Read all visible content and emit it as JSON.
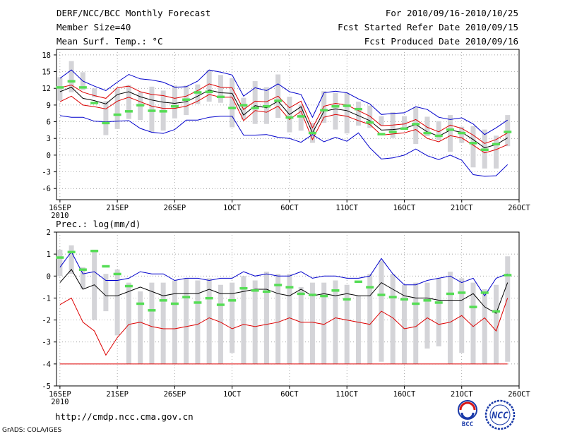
{
  "header": {
    "title": "DERF/NCC/BCC Monthly Forecast",
    "member_size": "Member Size=40",
    "variable": "Mean Surf. Temp.: °C",
    "period": "For 2010/09/16-2010/10/25",
    "started": "Fcst Started Refer Date 2010/09/15",
    "produced": "Fcst Produced Date 2010/09/16"
  },
  "footer": {
    "url": "http://cmdp.ncc.cma.gov.cn",
    "grads": "GrADS: COLA/IGES",
    "logo_bcc_text": "BCC",
    "logo_ncc_text": "NCC"
  },
  "colors": {
    "max": "#0000cc",
    "mean": "#000000",
    "min": "#dd0000",
    "median": "#55dd55",
    "box": "#d4d4d8",
    "grid": "#888888"
  },
  "chart_data": [
    {
      "type": "box-and-line",
      "title": "Mean Surf. Temp.: °C",
      "ylabel": "°C",
      "ylim": [
        -8,
        19
      ],
      "yticks": [
        -6,
        -3,
        0,
        3,
        6,
        9,
        12,
        15,
        18
      ],
      "xticks": [
        {
          "day": 0,
          "label": "16SEP"
        },
        {
          "day": 5,
          "label": "21SEP"
        },
        {
          "day": 10,
          "label": "26SEP"
        },
        {
          "day": 15,
          "label": "1OCT"
        },
        {
          "day": 20,
          "label": "6OCT"
        },
        {
          "day": 25,
          "label": "11OCT"
        },
        {
          "day": 30,
          "label": "16OCT"
        },
        {
          "day": 35,
          "label": "21OCT"
        },
        {
          "day": 40,
          "label": "26OCT"
        }
      ],
      "year_label": "2010",
      "xlim": [
        -0.3,
        40
      ],
      "days": [
        0,
        1,
        2,
        3,
        4,
        5,
        6,
        7,
        8,
        9,
        10,
        11,
        12,
        13,
        14,
        15,
        16,
        17,
        18,
        19,
        20,
        21,
        22,
        23,
        24,
        25,
        26,
        27,
        28,
        29,
        30,
        31,
        32,
        33,
        34,
        35,
        36,
        37,
        38,
        39
      ],
      "series": [
        {
          "name": "max",
          "color": "#0000cc",
          "values": [
            13.8,
            15.3,
            13.3,
            12.4,
            11.6,
            13.1,
            14.5,
            13.7,
            13.5,
            13.1,
            12.2,
            12.3,
            13.3,
            15.3,
            14.9,
            14.4,
            10.6,
            12.1,
            11.6,
            12.8,
            11.4,
            10.9,
            6.8,
            11.2,
            11.5,
            11.2,
            10.1,
            9.2,
            7.3,
            7.5,
            7.6,
            8.7,
            8.2,
            6.8,
            6.4,
            6.7,
            5.6,
            3.7,
            4.9,
            6.3
          ]
        },
        {
          "name": "mean",
          "color": "#000000",
          "values": [
            11.4,
            12.2,
            10.2,
            9.8,
            9.2,
            10.9,
            11.4,
            10.5,
            9.9,
            9.5,
            9.3,
            9.6,
            10.6,
            11.7,
            11.2,
            11.1,
            7.2,
            8.9,
            8.5,
            9.7,
            7.3,
            8.7,
            4.0,
            7.9,
            8.3,
            8.0,
            7.1,
            6.2,
            4.5,
            4.6,
            4.8,
            5.5,
            4.2,
            3.4,
            4.5,
            4.1,
            2.8,
            1.3,
            1.9,
            3.1
          ]
        },
        {
          "name": "median-upper",
          "color": "#dd0000",
          "values": [
            12.1,
            12.6,
            11.3,
            10.7,
            10.2,
            12.1,
            12.4,
            11.4,
            10.9,
            10.7,
            10.2,
            10.6,
            11.6,
            12.8,
            12.2,
            12.1,
            8.2,
            9.7,
            9.6,
            10.6,
            8.5,
            9.7,
            4.9,
            8.8,
            9.3,
            9.0,
            8.0,
            7.0,
            5.3,
            5.4,
            5.6,
            6.4,
            5.0,
            4.2,
            5.4,
            4.8,
            3.6,
            2.1,
            2.8,
            4.0
          ]
        },
        {
          "name": "min",
          "color": "#dd0000",
          "values": [
            9.6,
            10.6,
            9.0,
            8.7,
            8.3,
            9.7,
            10.4,
            9.6,
            8.8,
            8.4,
            8.4,
            8.8,
            9.7,
            10.9,
            10.4,
            10.4,
            6.2,
            8.0,
            7.7,
            8.8,
            6.4,
            7.9,
            2.8,
            6.8,
            7.3,
            7.0,
            6.2,
            5.5,
            3.6,
            3.8,
            4.0,
            4.6,
            3.0,
            2.4,
            3.5,
            3.1,
            1.8,
            0.4,
            1.0,
            1.9
          ]
        },
        {
          "name": "lower",
          "color": "#0000cc",
          "values": [
            7.1,
            6.8,
            6.8,
            6.1,
            6.0,
            6.1,
            6.2,
            4.8,
            4.1,
            3.9,
            4.6,
            6.3,
            6.3,
            6.8,
            7.0,
            7.0,
            3.6,
            3.6,
            3.7,
            3.2,
            3.0,
            2.3,
            3.7,
            2.4,
            3.2,
            2.5,
            4.0,
            1.3,
            -0.7,
            -0.5,
            0.0,
            1.1,
            -0.1,
            -0.8,
            0.0,
            -0.9,
            -3.5,
            -3.8,
            -3.7,
            -1.7
          ]
        }
      ],
      "box_low": [
        9.8,
        11.3,
        11.7,
        10.4,
        3.6,
        4.7,
        6.5,
        6.3,
        4.1,
        4.4,
        6.6,
        7.2,
        9.2,
        9.6,
        9.4,
        5.0,
        6.4,
        5.6,
        5.6,
        6.7,
        4.1,
        4.4,
        2.2,
        5.8,
        4.6,
        3.9,
        5.3,
        4.9,
        5.3,
        3.1,
        4.9,
        2.0,
        3.4,
        2.7,
        0.6,
        2.2,
        -2.2,
        -2.4,
        -2.4,
        1.6
      ],
      "box_high": [
        14.0,
        16.9,
        14.9,
        12.0,
        9.7,
        12.0,
        12.6,
        11.3,
        12.3,
        11.6,
        12.5,
        12.5,
        12.7,
        15.3,
        14.4,
        13.8,
        10.3,
        13.3,
        12.2,
        14.5,
        10.5,
        9.1,
        5.8,
        11.5,
        11.2,
        11.2,
        9.6,
        8.9,
        7.0,
        7.7,
        7.0,
        8.6,
        6.9,
        6.1,
        7.2,
        5.1,
        5.2,
        4.6,
        3.5,
        7.2
      ],
      "median": [
        12.2,
        13.3,
        12.2,
        9.4,
        5.8,
        7.3,
        7.9,
        9.0,
        8.0,
        7.9,
        8.8,
        10.0,
        11.3,
        11.4,
        10.5,
        8.5,
        9.0,
        8.5,
        8.8,
        9.8,
        6.8,
        7.0,
        4.0,
        8.1,
        8.8,
        8.9,
        8.3,
        5.9,
        3.8,
        4.2,
        4.8,
        5.6,
        4.0,
        3.5,
        4.6,
        4.0,
        2.2,
        1.0,
        2.0,
        4.2
      ]
    },
    {
      "type": "box-and-line",
      "title": "Prec.: log(mm/d)",
      "ylabel": "log(mm/d)",
      "ylim": [
        -5,
        2
      ],
      "yticks": [
        -5,
        -4,
        -3,
        -2,
        -1,
        0,
        1,
        2
      ],
      "xticks": [
        {
          "day": 0,
          "label": "16SEP"
        },
        {
          "day": 5,
          "label": "21SEP"
        },
        {
          "day": 10,
          "label": "26SEP"
        },
        {
          "day": 15,
          "label": "1OCT"
        },
        {
          "day": 20,
          "label": "6OCT"
        },
        {
          "day": 25,
          "label": "11OCT"
        },
        {
          "day": 30,
          "label": "16OCT"
        },
        {
          "day": 35,
          "label": "21OCT"
        },
        {
          "day": 40,
          "label": "26OCT"
        }
      ],
      "year_label": "2010",
      "xlim": [
        -0.3,
        40
      ],
      "days": [
        0,
        1,
        2,
        3,
        4,
        5,
        6,
        7,
        8,
        9,
        10,
        11,
        12,
        13,
        14,
        15,
        16,
        17,
        18,
        19,
        20,
        21,
        22,
        23,
        24,
        25,
        26,
        27,
        28,
        29,
        30,
        31,
        32,
        33,
        34,
        35,
        36,
        37,
        38,
        39
      ],
      "series": [
        {
          "name": "max",
          "color": "#0000cc",
          "values": [
            0.4,
            1.1,
            0.1,
            0.2,
            -0.2,
            -0.2,
            -0.1,
            0.2,
            0.1,
            0.1,
            -0.2,
            -0.1,
            -0.1,
            -0.2,
            -0.1,
            -0.1,
            0.2,
            0.0,
            0.1,
            0.0,
            0.0,
            0.2,
            -0.1,
            0.0,
            0.0,
            -0.1,
            -0.1,
            0.0,
            0.8,
            0.1,
            -0.4,
            -0.4,
            -0.2,
            -0.1,
            0.0,
            -0.3,
            -0.1,
            -0.9,
            -0.1,
            0.1
          ]
        },
        {
          "name": "mean",
          "color": "#000000",
          "values": [
            -0.3,
            0.3,
            -0.6,
            -0.4,
            -0.9,
            -0.9,
            -0.7,
            -0.5,
            -0.7,
            -0.9,
            -0.8,
            -0.8,
            -0.8,
            -0.6,
            -0.8,
            -0.8,
            -0.7,
            -0.6,
            -0.6,
            -0.8,
            -0.9,
            -0.6,
            -0.9,
            -0.8,
            -0.9,
            -0.8,
            -0.9,
            -0.9,
            -0.3,
            -0.6,
            -0.9,
            -1.0,
            -1.0,
            -1.1,
            -1.1,
            -1.1,
            -0.8,
            -1.4,
            -1.7,
            -0.3
          ]
        },
        {
          "name": "min",
          "color": "#dd0000",
          "values": [
            -1.3,
            -1.0,
            -2.1,
            -2.5,
            -3.6,
            -2.8,
            -2.2,
            -2.1,
            -2.3,
            -2.4,
            -2.4,
            -2.3,
            -2.2,
            -1.9,
            -2.1,
            -2.4,
            -2.2,
            -2.3,
            -2.2,
            -2.1,
            -1.9,
            -2.1,
            -2.1,
            -2.2,
            -1.9,
            -2.0,
            -2.1,
            -2.2,
            -1.6,
            -1.9,
            -2.4,
            -2.3,
            -1.9,
            -2.2,
            -2.1,
            -1.8,
            -2.3,
            -1.9,
            -2.5,
            -1.0
          ]
        },
        {
          "name": "floor",
          "color": "#dd0000",
          "values": [
            -4.0,
            -4.0,
            -4.0,
            -4.0,
            -4.0,
            -4.0,
            -4.0,
            -4.0,
            -4.0,
            -4.0,
            -4.0,
            -4.0,
            -4.0,
            -4.0,
            -4.0,
            -4.0,
            -4.0,
            -4.0,
            -4.0,
            -4.0,
            -4.0,
            -4.0,
            -4.0,
            -4.0,
            -4.0,
            -4.0,
            -4.0,
            -4.0,
            -4.0,
            -4.0,
            -4.0,
            -4.0,
            -4.0,
            -4.0,
            -4.0,
            -4.0,
            -4.0,
            -4.0,
            -4.0,
            -4.0
          ]
        }
      ],
      "box_low": [
        0.0,
        0.1,
        -0.6,
        -2.0,
        -1.6,
        -2.7,
        -4.0,
        -4.0,
        -4.0,
        -4.0,
        -4.0,
        -4.0,
        -4.0,
        -4.0,
        -4.0,
        -3.5,
        -4.0,
        -4.0,
        -4.0,
        -4.0,
        -4.0,
        -4.0,
        -4.0,
        -4.0,
        -4.0,
        -4.0,
        -4.0,
        -4.0,
        -3.9,
        -4.0,
        -4.0,
        -4.0,
        -3.3,
        -3.2,
        -4.0,
        -3.5,
        -4.0,
        -4.0,
        -4.0,
        -3.9
      ],
      "box_high": [
        1.2,
        1.4,
        0.4,
        1.2,
        0.1,
        0.3,
        -0.3,
        -0.7,
        -0.3,
        -0.3,
        -0.2,
        -0.1,
        -0.2,
        -0.1,
        -0.4,
        -0.3,
        0.0,
        -0.2,
        0.2,
        0.1,
        0.1,
        -0.5,
        -0.3,
        -0.3,
        -0.2,
        -0.4,
        -0.9,
        0.1,
        0.7,
        0.1,
        -0.4,
        -0.3,
        -0.3,
        -0.1,
        0.2,
        -0.1,
        -0.3,
        -0.6,
        -0.4,
        0.9
      ],
      "median": [
        0.85,
        1.1,
        0.3,
        1.15,
        0.45,
        0.1,
        -0.45,
        -1.25,
        -1.55,
        -1.1,
        -1.25,
        -0.95,
        -1.2,
        -1.0,
        -1.3,
        -1.1,
        -0.55,
        -0.65,
        -0.7,
        -0.4,
        -0.5,
        -0.8,
        -0.85,
        -0.9,
        -0.65,
        -1.05,
        -0.25,
        -0.5,
        -0.85,
        -0.95,
        -1.05,
        -1.25,
        -1.1,
        -1.2,
        -0.8,
        -0.75,
        -1.4,
        -0.75,
        -1.6,
        0.05
      ]
    }
  ]
}
